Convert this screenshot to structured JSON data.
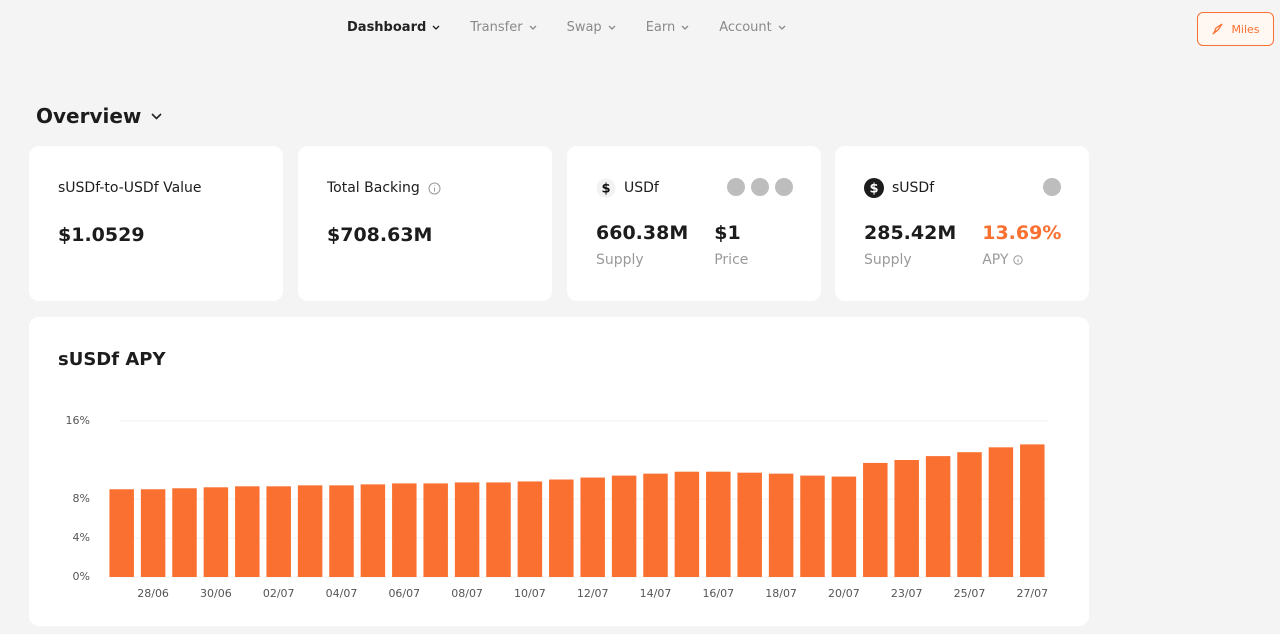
{
  "nav": {
    "items": [
      "Dashboard",
      "Transfer",
      "Swap",
      "Earn",
      "Account"
    ],
    "button": "Miles"
  },
  "overview": {
    "title": "Overview"
  },
  "cards": [
    {
      "label": "sUSDf-to-USDf Value",
      "value": "$1.0529"
    },
    {
      "label": "Total Backing",
      "value": "$708.63M"
    },
    {
      "label": "USDf",
      "stats": [
        {
          "value": "660.38M",
          "label": "Supply"
        },
        {
          "value": "$1",
          "label": "Price"
        }
      ]
    },
    {
      "label": "sUSDf",
      "stats": [
        {
          "value": "285.42M",
          "label": "Supply"
        },
        {
          "value": "13.69%",
          "label": "APY"
        }
      ]
    }
  ],
  "chart_data": {
    "type": "bar",
    "title": "sUSDf APY",
    "color": "#f97031",
    "categories": [
      null,
      "28/06",
      null,
      "30/06",
      null,
      "02/07",
      null,
      "04/07",
      null,
      "06/07",
      null,
      "08/07",
      null,
      "10/07",
      null,
      "12/07",
      null,
      "14/07",
      null,
      "16/07",
      null,
      "18/07",
      null,
      "20/07",
      null,
      "23/07",
      null,
      "25/07",
      null,
      "27/07"
    ],
    "values": [
      9.0,
      9.0,
      9.1,
      9.2,
      9.3,
      9.3,
      9.4,
      9.4,
      9.5,
      9.6,
      9.6,
      9.7,
      9.7,
      9.8,
      10.0,
      10.2,
      10.4,
      10.6,
      10.8,
      10.8,
      10.7,
      10.6,
      10.4,
      10.3,
      11.7,
      12.0,
      12.4,
      12.8,
      13.3,
      13.6
    ],
    "ylim": [
      0,
      16
    ],
    "yticks": [
      {
        "value": 0,
        "label": "0%"
      },
      {
        "value": 4,
        "label": "4%"
      },
      {
        "value": 8,
        "label": "8%"
      },
      {
        "value": 16,
        "label": "16%"
      }
    ],
    "grid": true
  }
}
